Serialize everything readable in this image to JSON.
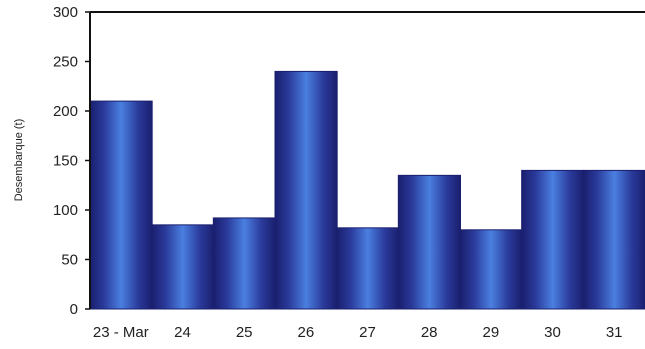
{
  "chart_data": {
    "type": "bar",
    "ylabel": "Desembarque (t)",
    "xlabel": "",
    "title": "",
    "categories": [
      "23 - Mar",
      "24",
      "25",
      "26",
      "27",
      "28",
      "29",
      "30",
      "31"
    ],
    "values": [
      210,
      85,
      92,
      240,
      82,
      135,
      80,
      140,
      140
    ],
    "ylim": [
      0,
      300
    ],
    "yticks": [
      0,
      50,
      100,
      150,
      200,
      250,
      300
    ],
    "grid": false,
    "colors": {
      "bar_edge": "#1a1f6e",
      "bar_center": "#4a7fe0",
      "axis": "#111111"
    }
  }
}
